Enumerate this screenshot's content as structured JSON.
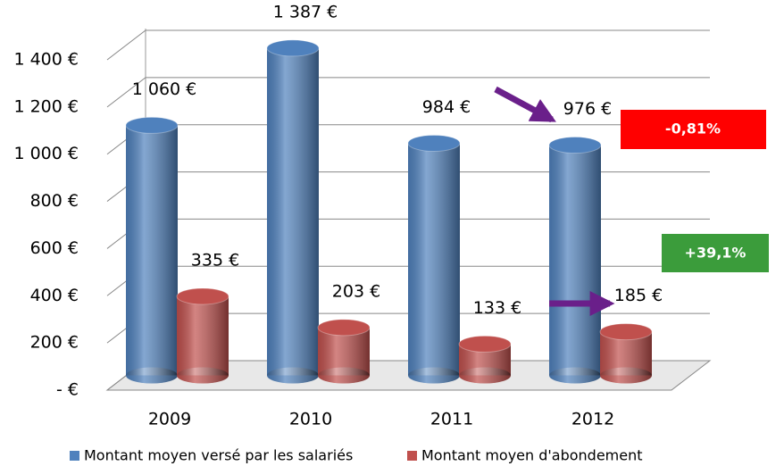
{
  "chart_data": {
    "type": "bar3d",
    "categories": [
      "2009",
      "2010",
      "2011",
      "2012"
    ],
    "series": [
      {
        "name": "Montant moyen versé par les salariés",
        "color": "#4f81bd",
        "values": [
          1060,
          1387,
          984,
          976
        ],
        "value_labels": [
          "1 060 €",
          "1 387 €",
          "984 €",
          "976 €"
        ]
      },
      {
        "name": "Montant moyen d'abondement",
        "color": "#c0504d",
        "values": [
          335,
          203,
          133,
          185
        ],
        "value_labels": [
          "335 €",
          "203 €",
          "133 €",
          "185 €"
        ]
      }
    ],
    "ylim": [
      0,
      1400
    ],
    "yticks": [
      {
        "value": 0,
        "label": "-  €"
      },
      {
        "value": 200,
        "label": "200 €"
      },
      {
        "value": 400,
        "label": "400 €"
      },
      {
        "value": 600,
        "label": "600 €"
      },
      {
        "value": 800,
        "label": "800 €"
      },
      {
        "value": 1000,
        "label": "1 000 €"
      },
      {
        "value": 1200,
        "label": "1 200 €"
      },
      {
        "value": 1400,
        "label": "1 400 €"
      }
    ],
    "grid": true,
    "annotations": [
      "-0,81%",
      "+39,1%"
    ]
  }
}
